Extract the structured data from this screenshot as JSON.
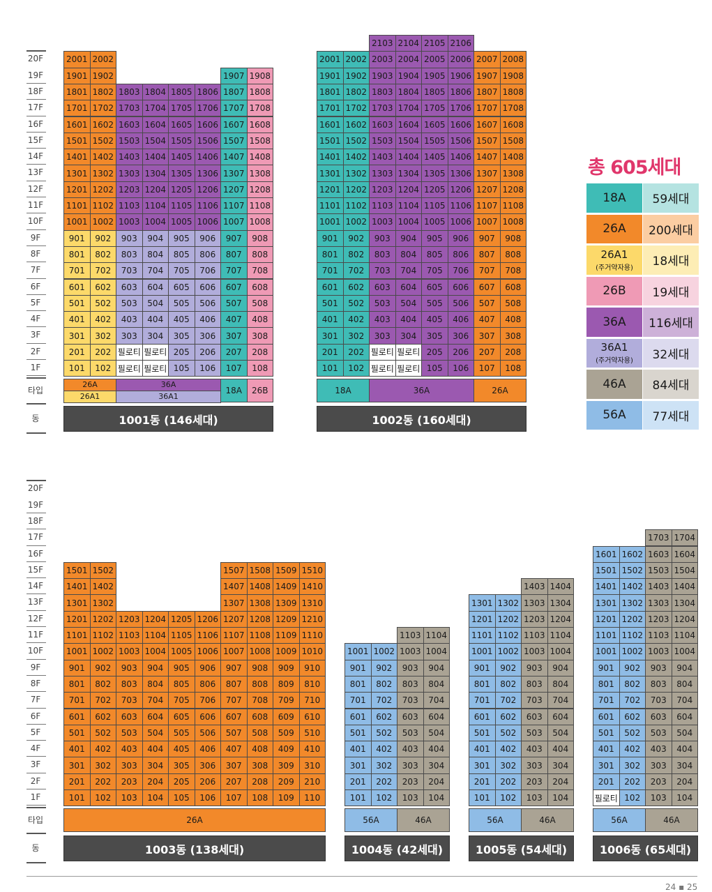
{
  "colors": {
    "18A": "#3fbcb6",
    "26A": "#f2892a",
    "26A1": "#fcd96a",
    "26B": "#ef9ab5",
    "36A": "#9b59b0",
    "36A1": "#b1addb",
    "46A": "#aaa394",
    "56A": "#8fbce6",
    "pilotis": "#ffffff"
  },
  "axis": {
    "floors_top": [
      "20F",
      "19F",
      "18F",
      "17F",
      "16F",
      "15F",
      "14F",
      "13F",
      "12F",
      "11F",
      "10F",
      "9F",
      "8F",
      "7F",
      "6F",
      "5F",
      "4F",
      "3F",
      "2F",
      "1F"
    ],
    "floors_bottom": [
      "20F",
      "19F",
      "18F",
      "17F",
      "16F",
      "15F",
      "14F",
      "13F",
      "12F",
      "11F",
      "10F",
      "9F",
      "8F",
      "7F",
      "6F",
      "5F",
      "4F",
      "3F",
      "2F",
      "1F"
    ],
    "type_label": "타입",
    "dong_label": "동",
    "pilotis_label": "필로티"
  },
  "buildings": [
    {
      "id": "b1001",
      "name": "1001동 (146세대)",
      "lines": [
        {
          "line": 1,
          "types": [
            [
              "26A",
              10,
              20
            ],
            [
              "26A1",
              1,
              9
            ]
          ]
        },
        {
          "line": 2,
          "types": [
            [
              "26A",
              10,
              20
            ],
            [
              "26A1",
              1,
              9
            ]
          ]
        },
        {
          "line": 3,
          "types": [
            [
              "36A",
              10,
              18
            ],
            [
              "36A1",
              1,
              9
            ]
          ],
          "pilotis": [
            1,
            2
          ]
        },
        {
          "line": 4,
          "types": [
            [
              "36A",
              10,
              18
            ],
            [
              "36A1",
              1,
              9
            ]
          ],
          "pilotis": [
            1,
            2
          ]
        },
        {
          "line": 5,
          "types": [
            [
              "36A",
              10,
              18
            ],
            [
              "36A1",
              1,
              9
            ]
          ]
        },
        {
          "line": 6,
          "types": [
            [
              "36A",
              10,
              18
            ],
            [
              "36A1",
              1,
              9
            ]
          ]
        },
        {
          "line": 7,
          "types": [
            [
              "18A",
              1,
              19
            ]
          ]
        },
        {
          "line": 8,
          "types": [
            [
              "26B",
              1,
              19
            ]
          ]
        }
      ],
      "type_row": [
        {
          "label": "26A",
          "start": 1,
          "span": 2,
          "color": "26A",
          "half": "top"
        },
        {
          "label": "26A1",
          "start": 1,
          "span": 2,
          "color": "26A1",
          "half": "bottom"
        },
        {
          "label": "36A",
          "start": 3,
          "span": 4,
          "color": "36A",
          "half": "top"
        },
        {
          "label": "36A1",
          "start": 3,
          "span": 4,
          "color": "36A1",
          "half": "bottom"
        },
        {
          "label": "18A",
          "start": 7,
          "span": 1,
          "color": "18A"
        },
        {
          "label": "26B",
          "start": 8,
          "span": 1,
          "color": "26B"
        }
      ]
    },
    {
      "id": "b1002",
      "name": "1002동 (160세대)",
      "lines": [
        {
          "line": 1,
          "types": [
            [
              "18A",
              1,
              20
            ]
          ]
        },
        {
          "line": 2,
          "types": [
            [
              "18A",
              1,
              20
            ]
          ]
        },
        {
          "line": 3,
          "types": [
            [
              "36A",
              1,
              21
            ]
          ],
          "pilotis": [
            1,
            2
          ]
        },
        {
          "line": 4,
          "types": [
            [
              "36A",
              1,
              21
            ]
          ],
          "pilotis": [
            1,
            2
          ]
        },
        {
          "line": 5,
          "types": [
            [
              "36A",
              1,
              21
            ]
          ]
        },
        {
          "line": 6,
          "types": [
            [
              "36A",
              1,
              21
            ]
          ]
        },
        {
          "line": 7,
          "types": [
            [
              "26A",
              1,
              20
            ]
          ]
        },
        {
          "line": 8,
          "types": [
            [
              "26A",
              1,
              20
            ]
          ]
        }
      ],
      "type_row": [
        {
          "label": "18A",
          "start": 1,
          "span": 2,
          "color": "18A"
        },
        {
          "label": "36A",
          "start": 3,
          "span": 4,
          "color": "36A"
        },
        {
          "label": "26A",
          "start": 7,
          "span": 2,
          "color": "26A"
        }
      ]
    },
    {
      "id": "b1003",
      "name": "1003동 (138세대)",
      "lines": [
        {
          "line": 1,
          "types": [
            [
              "26A",
              1,
              15
            ]
          ]
        },
        {
          "line": 2,
          "types": [
            [
              "26A",
              1,
              15
            ]
          ]
        },
        {
          "line": 3,
          "types": [
            [
              "26A",
              1,
              12
            ]
          ]
        },
        {
          "line": 4,
          "types": [
            [
              "26A",
              1,
              12
            ]
          ]
        },
        {
          "line": 5,
          "types": [
            [
              "26A",
              1,
              12
            ]
          ]
        },
        {
          "line": 6,
          "types": [
            [
              "26A",
              1,
              12
            ]
          ]
        },
        {
          "line": 7,
          "types": [
            [
              "26A",
              1,
              15
            ]
          ]
        },
        {
          "line": 8,
          "types": [
            [
              "26A",
              1,
              15
            ]
          ]
        },
        {
          "line": 9,
          "types": [
            [
              "26A",
              1,
              15
            ]
          ]
        },
        {
          "line": 10,
          "types": [
            [
              "26A",
              1,
              15
            ]
          ]
        }
      ],
      "type_row": [
        {
          "label": "26A",
          "start": 1,
          "span": 10,
          "color": "26A"
        }
      ]
    },
    {
      "id": "b1004",
      "name": "1004동 (42세대)",
      "lines": [
        {
          "line": 1,
          "types": [
            [
              "56A",
              1,
              10
            ]
          ]
        },
        {
          "line": 2,
          "types": [
            [
              "56A",
              1,
              10
            ]
          ]
        },
        {
          "line": 3,
          "types": [
            [
              "46A",
              1,
              11
            ]
          ]
        },
        {
          "line": 4,
          "types": [
            [
              "46A",
              1,
              11
            ]
          ]
        }
      ],
      "type_row": [
        {
          "label": "56A",
          "start": 1,
          "span": 2,
          "color": "56A"
        },
        {
          "label": "46A",
          "start": 3,
          "span": 2,
          "color": "46A"
        }
      ]
    },
    {
      "id": "b1005",
      "name": "1005동 (54세대)",
      "lines": [
        {
          "line": 1,
          "types": [
            [
              "56A",
              1,
              13
            ]
          ]
        },
        {
          "line": 2,
          "types": [
            [
              "56A",
              1,
              13
            ]
          ]
        },
        {
          "line": 3,
          "types": [
            [
              "46A",
              1,
              14
            ]
          ]
        },
        {
          "line": 4,
          "types": [
            [
              "46A",
              1,
              14
            ]
          ]
        }
      ],
      "type_row": [
        {
          "label": "56A",
          "start": 1,
          "span": 2,
          "color": "56A"
        },
        {
          "label": "46A",
          "start": 3,
          "span": 2,
          "color": "46A"
        }
      ]
    },
    {
      "id": "b1006",
      "name": "1006동 (65세대)",
      "lines": [
        {
          "line": 1,
          "types": [
            [
              "56A",
              1,
              16
            ]
          ],
          "pilotis": [
            1
          ]
        },
        {
          "line": 2,
          "types": [
            [
              "56A",
              1,
              16
            ]
          ]
        },
        {
          "line": 3,
          "types": [
            [
              "46A",
              1,
              17
            ]
          ]
        },
        {
          "line": 4,
          "types": [
            [
              "46A",
              1,
              17
            ]
          ]
        }
      ],
      "type_row": [
        {
          "label": "56A",
          "start": 1,
          "span": 2,
          "color": "56A"
        },
        {
          "label": "46A",
          "start": 3,
          "span": 2,
          "color": "46A"
        }
      ]
    }
  ],
  "legend": {
    "total": "총 605세대",
    "items": [
      {
        "type": "18A",
        "sub": "",
        "count": "59세대",
        "color": "#3fbcb6",
        "light": "#b5e3e1"
      },
      {
        "type": "26A",
        "sub": "",
        "count": "200세대",
        "color": "#f2892a",
        "light": "#fbcda2"
      },
      {
        "type": "26A1",
        "sub": "(주거약자용)",
        "count": "18세대",
        "color": "#fcd96a",
        "light": "#fdedb5"
      },
      {
        "type": "26B",
        "sub": "",
        "count": "19세대",
        "color": "#ef9ab5",
        "light": "#f7d3df"
      },
      {
        "type": "36A",
        "sub": "",
        "count": "116세대",
        "color": "#9b59b0",
        "light": "#cdb1d8"
      },
      {
        "type": "36A1",
        "sub": "(주거약자용)",
        "count": "32세대",
        "color": "#b1addb",
        "light": "#dcdaee"
      },
      {
        "type": "46A",
        "sub": "",
        "count": "84세대",
        "color": "#aaa394",
        "light": "#d9d5ce"
      },
      {
        "type": "56A",
        "sub": "",
        "count": "77세대",
        "color": "#8fbce6",
        "light": "#cde2f5"
      }
    ]
  },
  "page_number": "24 ▪ 25"
}
